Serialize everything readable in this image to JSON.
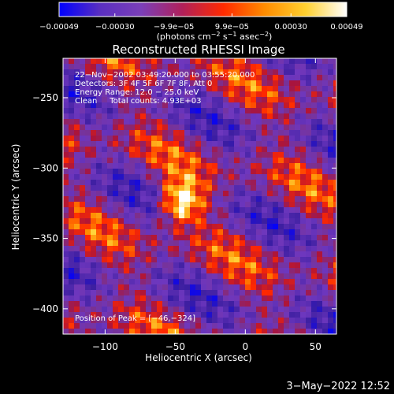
{
  "chart_data": {
    "type": "heatmap",
    "title": "Reconstructed RHESSI Image",
    "xlabel": "Heliocentric X (arcsec)",
    "ylabel": "Heliocentric Y (arcsec)",
    "xlim": [
      -130,
      65
    ],
    "ylim": [
      -418,
      -222
    ],
    "x_ticks": [
      -100,
      -50,
      0,
      50
    ],
    "x_tick_labels": [
      "−100",
      "−50",
      "0",
      "50"
    ],
    "y_ticks": [
      -400,
      -350,
      -300,
      -250
    ],
    "y_tick_labels": [
      "−400",
      "−350",
      "−300",
      "−250"
    ],
    "colorbar": {
      "min": -0.00049,
      "max": 0.00049,
      "tick_values": [
        -0.00049,
        -0.0003,
        -9.9e-05,
        9.9e-05,
        0.0003,
        0.00049
      ],
      "tick_labels": [
        "−0.00049",
        "−0.00030",
        "−9.9e−05",
        "9.9e−05",
        "0.00030",
        "0.00049"
      ],
      "units_main": "(photons cm",
      "units_exp1": "−2",
      "units_mid": " s",
      "units_exp2": "−1",
      "units_tail": " asec",
      "units_exp3": "−2",
      "units_close": ")",
      "colors": [
        "#0000ff",
        "#5a2fc0",
        "#7b3fb8",
        "#b0205a",
        "#ff2a00",
        "#ff8c00",
        "#ffd030",
        "#ffffff"
      ]
    },
    "annotations": [
      "22−Nov−2002 03:49:20.000 to 03:55:20.000",
      "Detectors: 3F 4F 5F 6F 7F 8F, Att 0",
      "Energy Range: 12.0 − 25.0 keV",
      "Clean     Total counts: 4.93E+03"
    ],
    "peak_label": "Position of Peak = [−46,−324]",
    "peak": [
      -46,
      -324
    ],
    "timestamp": "3−May−2022 12:52"
  }
}
